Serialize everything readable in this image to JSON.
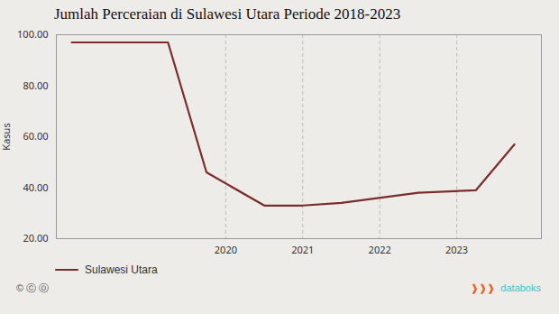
{
  "chart_data": {
    "type": "line",
    "title": "Jumlah Perceraian di Sulawesi Utara Periode 2018-2023",
    "ylabel": "Kasus",
    "x": [
      2018.0,
      2019.25,
      2019.75,
      2020.5,
      2021.0,
      2021.5,
      2022.5,
      2023.25,
      2023.75
    ],
    "series": [
      {
        "name": "Sulawesi Utara",
        "color": "#7B2C2C",
        "values": [
          97,
          97,
          46,
          33,
          33,
          34,
          38,
          39,
          57
        ]
      }
    ],
    "xlim": [
      2017.8,
      2024.1
    ],
    "xticks": [
      2020,
      2021,
      2022,
      2023
    ],
    "ylim": [
      20,
      100
    ],
    "yticks": [
      {
        "value": 20,
        "label": "20.00"
      },
      {
        "value": 40,
        "label": "40.00"
      },
      {
        "value": 60,
        "label": "60.00"
      },
      {
        "value": 80,
        "label": "80.00"
      },
      {
        "value": 100,
        "label": "100.00"
      }
    ],
    "grid": "x",
    "legend": "lower left",
    "annotations": [
      {
        "text": "© ⓒ ⓞ",
        "color": "#555555"
      },
      {
        "text": "❱❱❱",
        "color": "#E8622A"
      },
      {
        "text": "databoks",
        "color": "#4BBFBF"
      }
    ]
  }
}
